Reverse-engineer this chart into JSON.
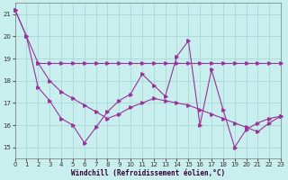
{
  "xlabel": "Windchill (Refroidissement éolien,°C)",
  "bg_color": "#c8eeed",
  "grid_color": "#a8d8d8",
  "line_color": "#993399",
  "xlim": [
    0,
    23
  ],
  "ylim": [
    14.5,
    21.5
  ],
  "yticks": [
    15,
    16,
    17,
    18,
    19,
    20,
    21
  ],
  "xticks": [
    0,
    1,
    2,
    3,
    4,
    5,
    6,
    7,
    8,
    9,
    10,
    11,
    12,
    13,
    14,
    15,
    16,
    17,
    18,
    19,
    20,
    21,
    22,
    23
  ],
  "curve1_x": [
    0,
    1,
    2,
    3,
    4,
    5,
    6,
    7,
    8,
    9,
    10,
    11,
    12,
    13,
    14,
    15,
    16,
    17,
    18,
    19,
    20,
    21,
    22,
    23
  ],
  "curve1_y": [
    21.2,
    20.0,
    17.7,
    17.1,
    16.3,
    16.0,
    15.2,
    15.9,
    16.6,
    17.1,
    17.4,
    18.3,
    17.8,
    17.3,
    19.1,
    19.8,
    16.0,
    18.5,
    16.7,
    15.0,
    15.8,
    16.1,
    16.3,
    16.4
  ],
  "curve2_x": [
    2,
    3,
    4,
    5,
    6,
    7,
    8,
    9,
    10,
    11,
    12,
    13,
    14,
    15,
    16,
    17,
    18,
    19,
    20,
    21,
    22,
    23
  ],
  "curve2_y": [
    18.8,
    18.8,
    18.8,
    18.8,
    18.8,
    18.8,
    18.8,
    18.8,
    18.8,
    18.8,
    18.8,
    18.8,
    18.8,
    18.8,
    18.8,
    18.8,
    18.8,
    18.8,
    18.8,
    18.8,
    18.8,
    18.8
  ],
  "curve3_x": [
    0,
    1,
    2,
    3,
    4,
    5,
    6,
    7,
    8,
    9,
    10,
    11,
    12,
    13,
    14,
    15,
    16,
    17,
    18,
    19,
    20,
    21,
    22,
    23
  ],
  "curve3_y": [
    21.2,
    20.0,
    18.8,
    18.0,
    17.5,
    17.2,
    16.9,
    16.6,
    16.3,
    16.5,
    16.8,
    17.0,
    17.2,
    17.1,
    17.0,
    16.9,
    16.7,
    16.5,
    16.3,
    16.1,
    15.9,
    15.7,
    16.1,
    16.4
  ]
}
